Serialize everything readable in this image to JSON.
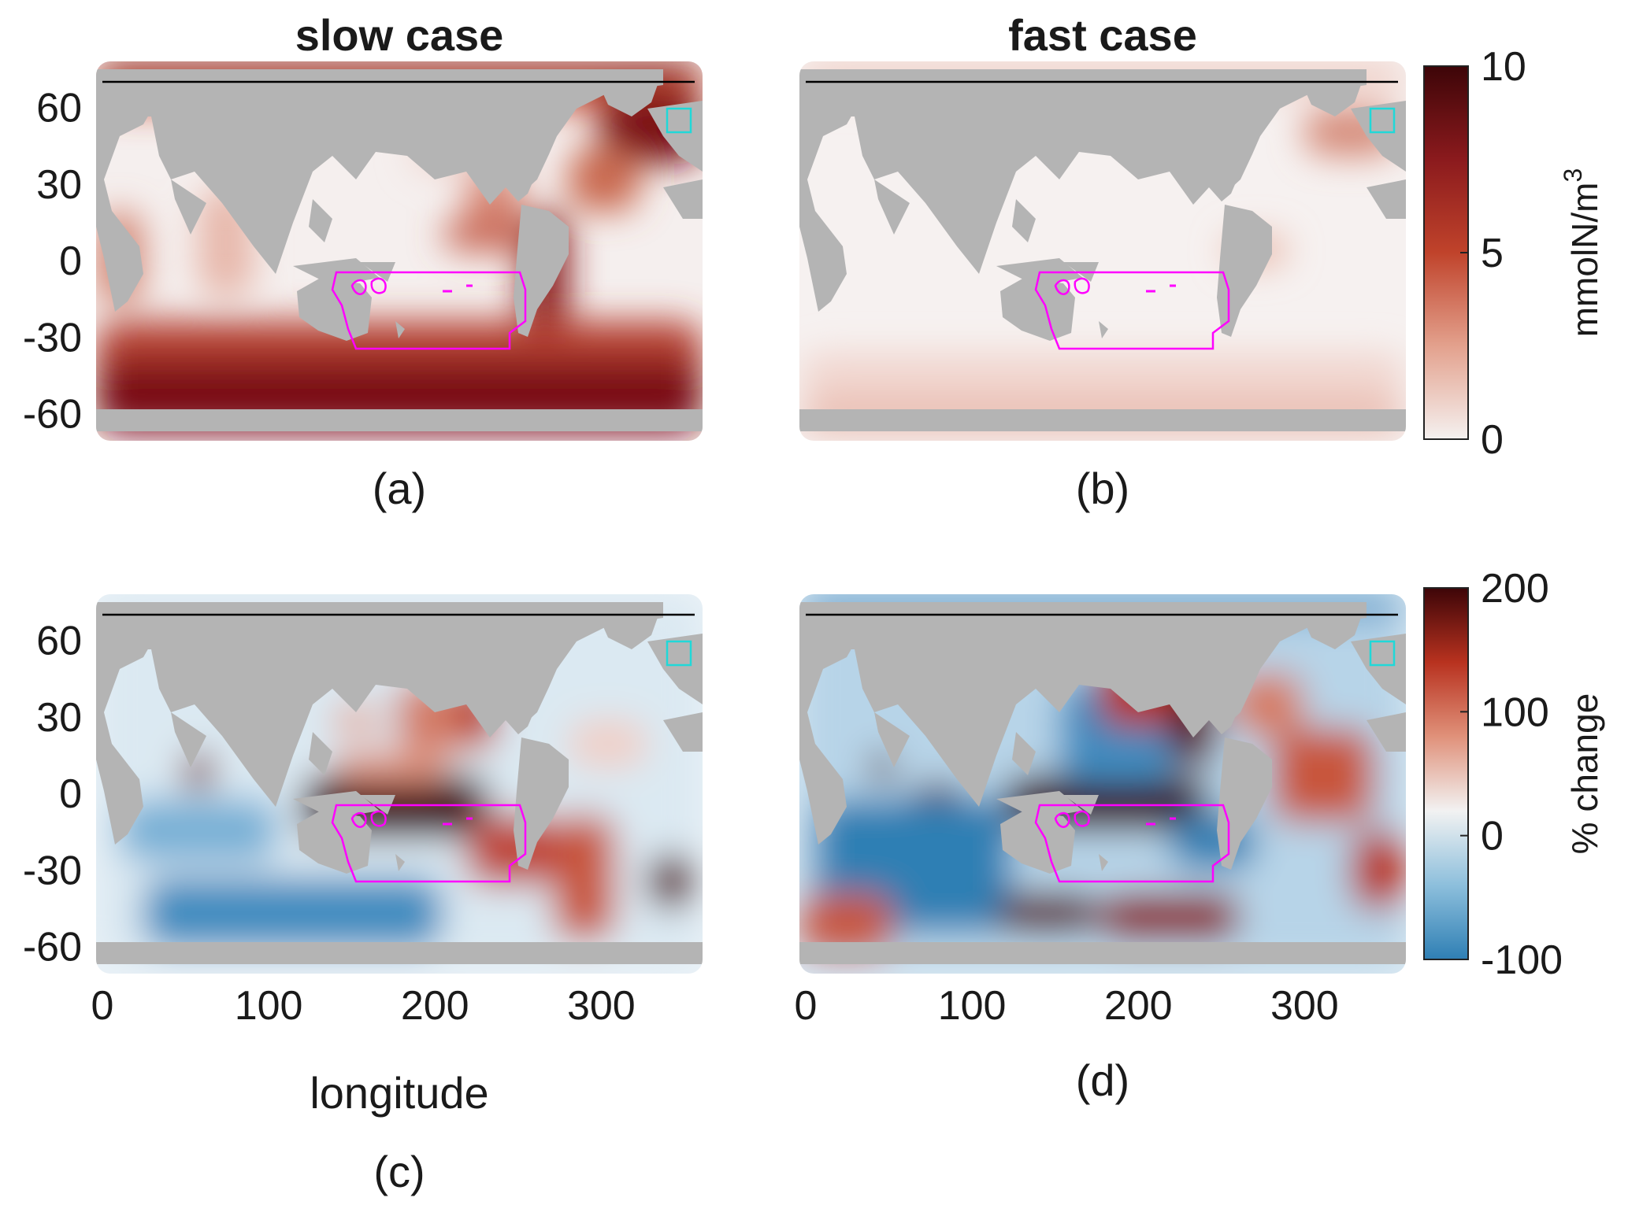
{
  "figure": {
    "panels": [
      {
        "id": "a",
        "label": "(a)",
        "title": "slow case",
        "kind": "concentration"
      },
      {
        "id": "b",
        "label": "(b)",
        "title": "fast case",
        "kind": "concentration"
      },
      {
        "id": "c",
        "label": "(c)",
        "title": "",
        "kind": "percent-change"
      },
      {
        "id": "d",
        "label": "(d)",
        "title": "",
        "kind": "percent-change"
      }
    ],
    "latitude_ticks": [
      "60",
      "30",
      "0",
      "-30",
      "-60"
    ],
    "longitude_ticks": [
      "0",
      "100",
      "200",
      "300"
    ],
    "xlabel": "longitude",
    "colorbars": [
      {
        "label": "mmolN/m",
        "label_superscript": "3",
        "ticks": [
          "10",
          "5",
          "0"
        ],
        "range": [
          0,
          10
        ],
        "colors": [
          "#f5f1f0",
          "#e3a18d",
          "#c0432b",
          "#8b1a1d",
          "#3d0508"
        ]
      },
      {
        "label": "% change",
        "ticks": [
          "200",
          "100",
          "0",
          "-100"
        ],
        "range": [
          -100,
          200
        ],
        "colors": [
          "#2f7fb4",
          "#8dbfdc",
          "#f2f2f2",
          "#e0917a",
          "#b8321f",
          "#3d0508"
        ]
      }
    ],
    "colors": {
      "land": "#b4b4b4",
      "region_outline": "#ff00ff",
      "box_outline": "#20d8d8",
      "line": "#000000"
    }
  },
  "chart_data": {
    "type": "heatmap",
    "x_axis": {
      "label": "longitude",
      "range": [
        0,
        360
      ],
      "ticks": [
        0,
        100,
        200,
        300
      ]
    },
    "y_axis": {
      "label": "",
      "range": [
        -70,
        75
      ],
      "ticks": [
        60,
        30,
        0,
        -30,
        -60
      ]
    },
    "panels": [
      {
        "label": "(a)",
        "title": "slow case",
        "units": "mmolN/m3",
        "range": [
          0,
          10
        ]
      },
      {
        "label": "(b)",
        "title": "fast case",
        "units": "mmolN/m3",
        "range": [
          0,
          10
        ]
      },
      {
        "label": "(c)",
        "title": "",
        "units": "% change",
        "range": [
          -100,
          200
        ]
      },
      {
        "label": "(d)",
        "title": "",
        "units": "% change",
        "range": [
          -100,
          200
        ]
      }
    ]
  }
}
